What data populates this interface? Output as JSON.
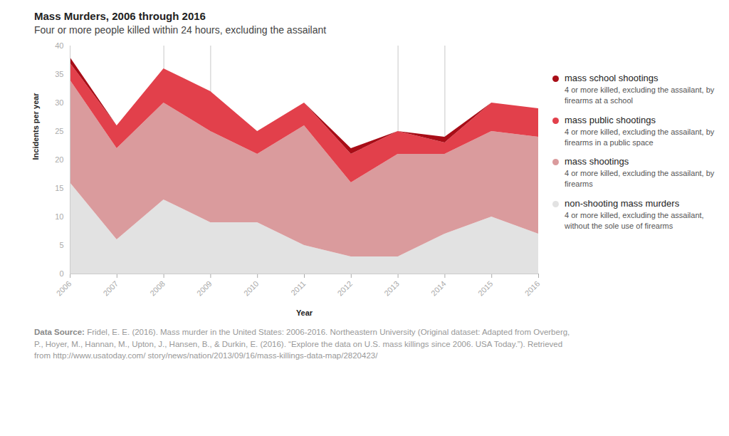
{
  "chart_data": {
    "type": "area",
    "stacked": true,
    "title": "Mass Murders, 2006 through 2016",
    "subtitle": "Four or more people killed within 24 hours, excluding the assailant",
    "x_label": "Year",
    "y_label": "Incidents per year",
    "x": [
      2006,
      2007,
      2008,
      2009,
      2010,
      2011,
      2012,
      2013,
      2014,
      2015,
      2016
    ],
    "xlim": [
      2006,
      2016
    ],
    "xticks": [
      2006,
      2007,
      2008,
      2009,
      2010,
      2011,
      2012,
      2013,
      2014,
      2015,
      2016
    ],
    "ylim": [
      0,
      40
    ],
    "yticks": [
      0,
      5,
      10,
      15,
      20,
      25,
      30,
      35,
      40
    ],
    "grid": false,
    "legend": "right",
    "reference_lines": [
      2008,
      2009,
      2013,
      2014
    ],
    "series": [
      {
        "name": "non-shooting mass murders",
        "description": "4 or more killed, excluding the assailant, without the sole use of firearms",
        "color": "#e2e2e2",
        "values": [
          16,
          6,
          13,
          9,
          9,
          5,
          3,
          3,
          7,
          10,
          7
        ]
      },
      {
        "name": "mass shootings",
        "description": "4 or more killed, excluding the assailant, by firearms",
        "color": "#da9b9d",
        "values": [
          18,
          16,
          17,
          16,
          12,
          21,
          13,
          18,
          14,
          15,
          17
        ]
      },
      {
        "name": "mass public shootings",
        "description": "4 or more killed, excluding the assailant, by firearms in a public space",
        "color": "#e2404b",
        "values": [
          3,
          4,
          6,
          7,
          4,
          4,
          5,
          4,
          2,
          5,
          5
        ]
      },
      {
        "name": "mass school shootings",
        "description": "4 or more killed, excluding the assailant, by firearms at a school",
        "color": "#a80d17",
        "values": [
          1,
          0,
          0,
          0,
          0,
          0,
          1,
          0,
          1,
          0,
          0
        ]
      }
    ],
    "source_label": "Data Source:",
    "source": "Fridel, E. E. (2016). Mass murder in the United States: 2006-2016. Northeastern University (Original dataset: Adapted from Overberg, P., Hoyer, M., Hannan, M., Upton, J., Hansen, B., & Durkin, E. (2016). “Explore the data on U.S. mass killings since 2006. USA Today.”). Retrieved from http://www.usatoday.com/ story/news/nation/2013/09/16/mass-killings-data-map/2820423/"
  }
}
